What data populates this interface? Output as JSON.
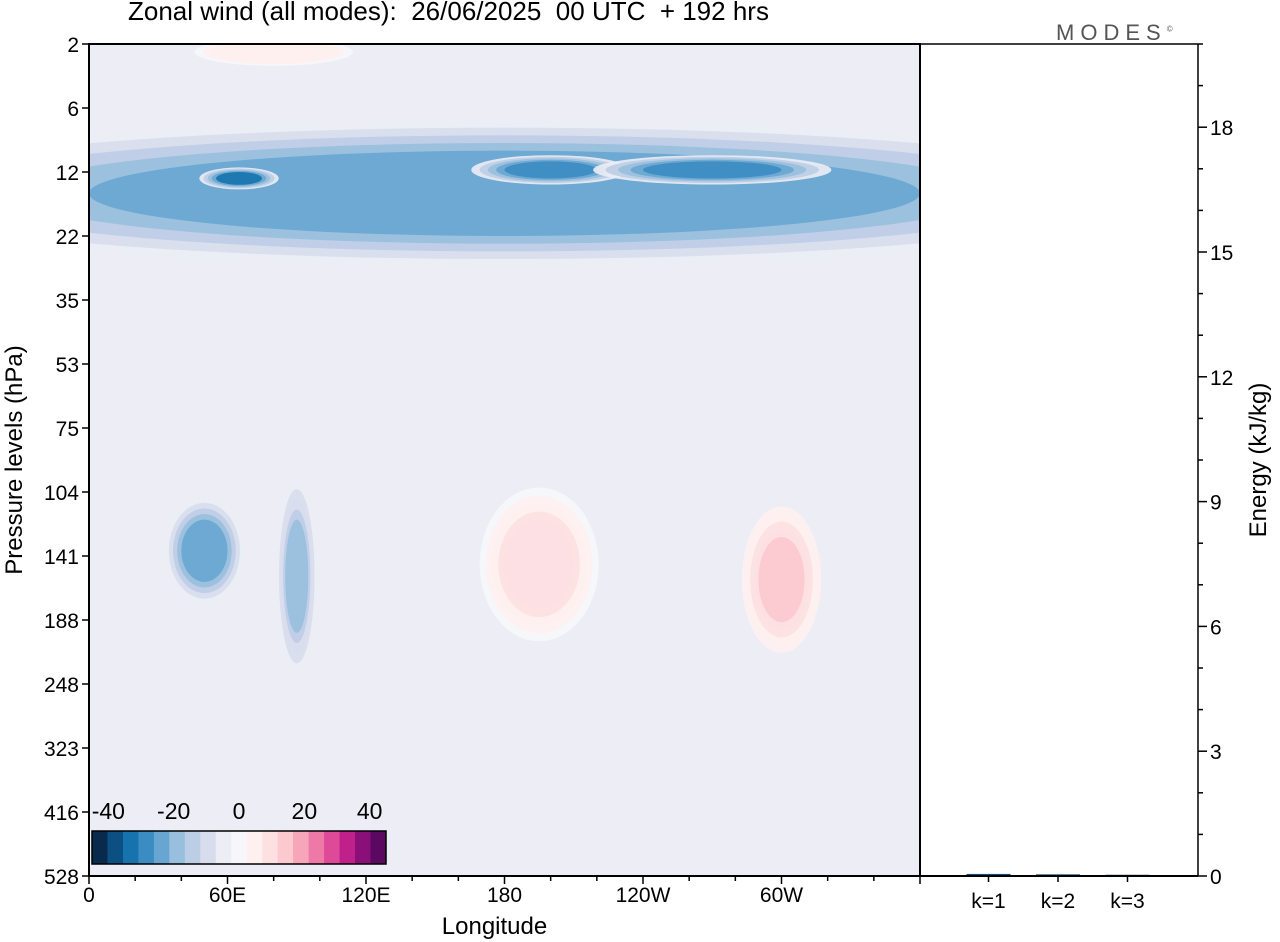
{
  "header": {
    "title": "Zonal wind (all modes):  26/06/2025  00 UTC  + 192 hrs",
    "logo": "MODES",
    "logo_mark": "©"
  },
  "colors": {
    "scale": [
      "#0a2a4d",
      "#0b4f83",
      "#1673ad",
      "#3a8cc2",
      "#68a6d1",
      "#98bfdd",
      "#bccde6",
      "#d8dded",
      "#ecedf5",
      "#f7f7fb",
      "#fff0f0",
      "#fde0e2",
      "#fcc9cf",
      "#f7a5b8",
      "#ef79a6",
      "#df4a98",
      "#c0208a",
      "#8a0f78",
      "#5a0860"
    ]
  },
  "chart_data": [
    {
      "type": "heatmap",
      "title": "Zonal wind (all modes):  26/06/2025  00 UTC  + 192 hrs",
      "xlabel": "Longitude",
      "ylabel": "Pressure levels (hPa)",
      "x_ticks": [
        "0",
        "60E",
        "120E",
        "180",
        "120W",
        "60W"
      ],
      "x_tick_degrees": [
        0,
        60,
        120,
        180,
        240,
        300
      ],
      "xlim": [
        0,
        360
      ],
      "y_ticks": [
        2,
        6,
        12,
        22,
        35,
        53,
        75,
        104,
        141,
        188,
        248,
        323,
        416,
        528
      ],
      "y_scale": "categorical (top 2 hPa, bottom 528 hPa)",
      "colorbar": {
        "ticks": [
          -40,
          -20,
          0,
          20,
          40
        ],
        "range": [
          -45,
          45
        ],
        "placement": "bottom-left",
        "colors": [
          "#0a2a4d",
          "#0b4f83",
          "#1673ad",
          "#3a8cc2",
          "#68a6d1",
          "#98bfdd",
          "#bccde6",
          "#d8dded",
          "#ecedf5",
          "#f7f7fb",
          "#fff0f0",
          "#fde0e2",
          "#fcc9cf",
          "#f7a5b8",
          "#ef79a6",
          "#df4a98",
          "#c0208a",
          "#8a0f78",
          "#5a0860"
        ]
      },
      "features": [
        {
          "lon": [
            0,
            360
          ],
          "p": [
            10,
            22
          ],
          "value": -25
        },
        {
          "lon": [
            55,
            75
          ],
          "p": [
            12,
            14
          ],
          "value": -32
        },
        {
          "lon": [
            180,
            220
          ],
          "p": [
            11,
            13
          ],
          "value": -30
        },
        {
          "lon": [
            240,
            300
          ],
          "p": [
            11,
            13
          ],
          "value": -30
        },
        {
          "lon": [
            40,
            60
          ],
          "p": [
            120,
            160
          ],
          "value": -22
        },
        {
          "lon": [
            85,
            95
          ],
          "p": [
            120,
            200
          ],
          "value": -18
        },
        {
          "lon": [
            180,
            210
          ],
          "p": [
            120,
            180
          ],
          "value": 10
        },
        {
          "lon": [
            290,
            310
          ],
          "p": [
            130,
            190
          ],
          "value": 12
        },
        {
          "lon": [
            60,
            100
          ],
          "p": [
            2,
            3
          ],
          "value": 6
        }
      ]
    },
    {
      "type": "bar",
      "ylabel": "Energy (kJ/kg)",
      "categories": [
        "k=1",
        "k=2",
        "k=3"
      ],
      "values": [
        0.05,
        0.04,
        0.03
      ],
      "ylim": [
        0,
        20
      ],
      "y_ticks": [
        0,
        3,
        6,
        9,
        12,
        15,
        18
      ],
      "colors": [
        "#0b4f83",
        "#0b4f83",
        "#0b4f83"
      ]
    }
  ]
}
